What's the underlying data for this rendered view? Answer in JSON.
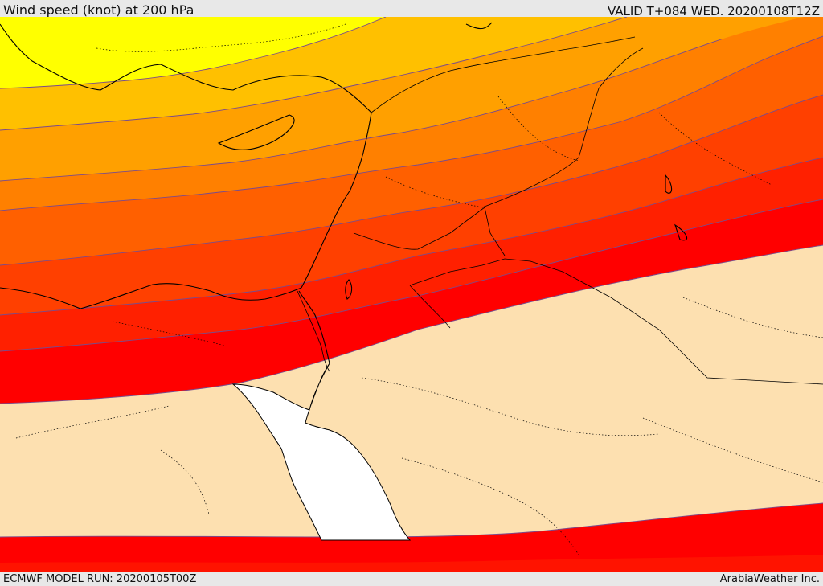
{
  "header": {
    "title": "Wind speed (knot) at 200 hPa",
    "valid": "VALID T+084 WED. 20200108T12Z"
  },
  "footer": {
    "model_run": "ECMWF MODEL RUN: 20200105T00Z",
    "credit": "ArabiaWeather Inc."
  },
  "palette": {
    "land_calm": "#fde0b0",
    "sea": "#ffffff",
    "band_yellow": "#ffff00",
    "band_gold": "#ffc000",
    "band_amber": "#ffa000",
    "band_orange": "#ff8000",
    "band_dark_orange": "#ff6000",
    "band_red_orange": "#ff4000",
    "band_scarlet": "#ff2000",
    "band_red": "#ff0000",
    "contour": "#7a4b8c",
    "coast": "#000000"
  }
}
